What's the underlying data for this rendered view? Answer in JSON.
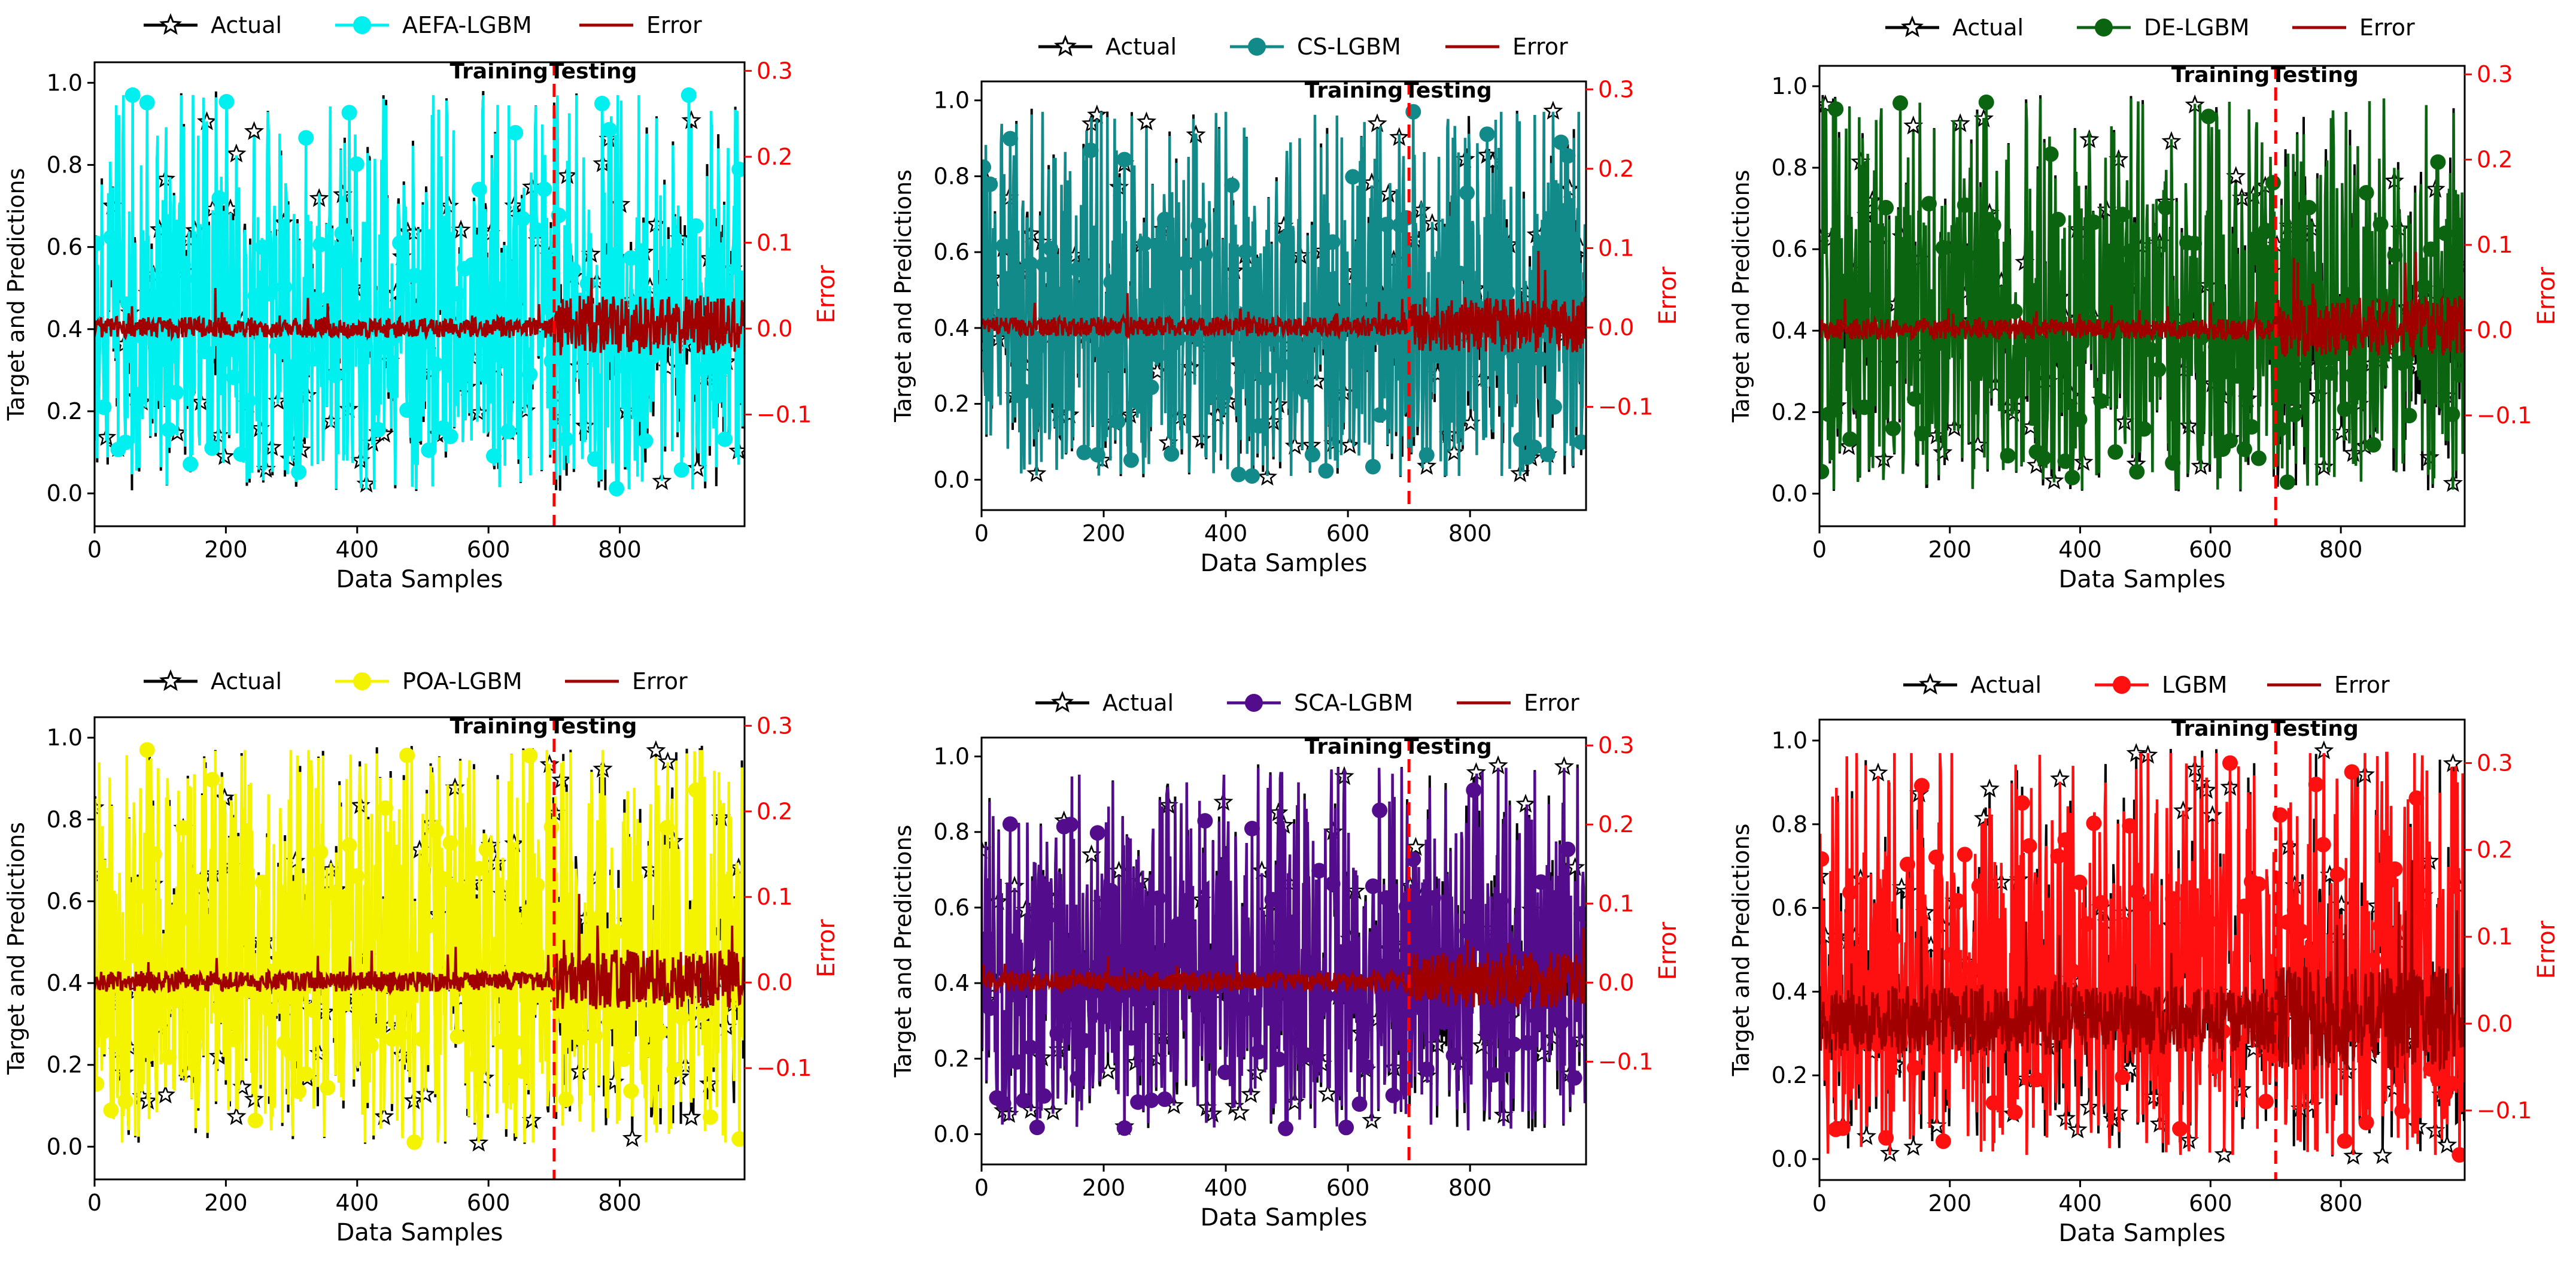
{
  "figure": {
    "xlabel": "Data Samples",
    "ylabel_left": "Target and Predictions",
    "ylabel_right": "Error",
    "annotation_train": "Training",
    "annotation_test": "Testing",
    "legend_actual": "Actual",
    "legend_error": "Error",
    "colors": {
      "actual": "#000000",
      "error": "#a00000",
      "split": "#ff0000",
      "error_axis": "#ff0000"
    }
  },
  "chart_data": [
    {
      "type": "line",
      "title": "",
      "model": "AEFA-LGBM",
      "pred_color": "#00f0f0",
      "n_samples": 990,
      "split_at": 700,
      "xlim": [
        0,
        990
      ],
      "ylim": [
        -0.08,
        1.05
      ],
      "y2lim": [
        -0.23,
        0.31
      ],
      "xticks": [
        0,
        200,
        400,
        600,
        800
      ],
      "yticks": [
        0.0,
        0.2,
        0.4,
        0.6,
        0.8,
        1.0
      ],
      "y2ticks": [
        -0.1,
        0.0,
        0.1,
        0.2,
        0.3
      ],
      "series": [
        {
          "name": "Actual"
        },
        {
          "name": "AEFA-LGBM"
        },
        {
          "name": "Error"
        }
      ],
      "error_amplitude_train": 0.012,
      "error_amplitude_test": 0.035,
      "error_baseline": 0.0
    },
    {
      "type": "line",
      "title": "",
      "model": "CS-LGBM",
      "pred_color": "#128a8a",
      "n_samples": 990,
      "split_at": 700,
      "xlim": [
        0,
        990
      ],
      "ylim": [
        -0.08,
        1.05
      ],
      "y2lim": [
        -0.23,
        0.31
      ],
      "xticks": [
        0,
        200,
        400,
        600,
        800
      ],
      "yticks": [
        0.0,
        0.2,
        0.4,
        0.6,
        0.8,
        1.0
      ],
      "y2ticks": [
        -0.1,
        0.0,
        0.1,
        0.2,
        0.3
      ],
      "series": [
        {
          "name": "Actual"
        },
        {
          "name": "CS-LGBM"
        },
        {
          "name": "Error"
        }
      ],
      "error_amplitude_train": 0.012,
      "error_amplitude_test": 0.035,
      "error_baseline": 0.0
    },
    {
      "type": "line",
      "title": "",
      "model": "DE-LGBM",
      "pred_color": "#0a6410",
      "n_samples": 990,
      "split_at": 700,
      "xlim": [
        0,
        990
      ],
      "ylim": [
        -0.08,
        1.05
      ],
      "y2lim": [
        -0.23,
        0.31
      ],
      "xticks": [
        0,
        200,
        400,
        600,
        800
      ],
      "yticks": [
        0.0,
        0.2,
        0.4,
        0.6,
        0.8,
        1.0
      ],
      "y2ticks": [
        -0.1,
        0.0,
        0.1,
        0.2,
        0.3
      ],
      "series": [
        {
          "name": "Actual"
        },
        {
          "name": "DE-LGBM"
        },
        {
          "name": "Error"
        }
      ],
      "error_amplitude_train": 0.012,
      "error_amplitude_test": 0.035,
      "error_baseline": 0.0
    },
    {
      "type": "line",
      "title": "",
      "model": "POA-LGBM",
      "pred_color": "#f4f400",
      "n_samples": 990,
      "split_at": 700,
      "xlim": [
        0,
        990
      ],
      "ylim": [
        -0.08,
        1.05
      ],
      "y2lim": [
        -0.23,
        0.31
      ],
      "xticks": [
        0,
        200,
        400,
        600,
        800
      ],
      "yticks": [
        0.0,
        0.2,
        0.4,
        0.6,
        0.8,
        1.0
      ],
      "y2ticks": [
        -0.1,
        0.0,
        0.1,
        0.2,
        0.3
      ],
      "series": [
        {
          "name": "Actual"
        },
        {
          "name": "POA-LGBM"
        },
        {
          "name": "Error"
        }
      ],
      "error_amplitude_train": 0.012,
      "error_amplitude_test": 0.035,
      "error_baseline": 0.0
    },
    {
      "type": "line",
      "title": "",
      "model": "SCA-LGBM",
      "pred_color": "#520c8c",
      "n_samples": 990,
      "split_at": 700,
      "xlim": [
        0,
        990
      ],
      "ylim": [
        -0.08,
        1.05
      ],
      "y2lim": [
        -0.23,
        0.31
      ],
      "xticks": [
        0,
        200,
        400,
        600,
        800
      ],
      "yticks": [
        0.0,
        0.2,
        0.4,
        0.6,
        0.8,
        1.0
      ],
      "y2ticks": [
        -0.1,
        0.0,
        0.1,
        0.2,
        0.3
      ],
      "series": [
        {
          "name": "Actual"
        },
        {
          "name": "SCA-LGBM"
        },
        {
          "name": "Error"
        }
      ],
      "error_amplitude_train": 0.012,
      "error_amplitude_test": 0.035,
      "error_baseline": 0.0
    },
    {
      "type": "line",
      "title": "",
      "model": "LGBM",
      "pred_color": "#ff1010",
      "n_samples": 990,
      "split_at": 700,
      "xlim": [
        0,
        990
      ],
      "ylim": [
        -0.05,
        1.05
      ],
      "y2lim": [
        -0.18,
        0.35
      ],
      "xticks": [
        0,
        200,
        400,
        600,
        800
      ],
      "yticks": [
        0.0,
        0.2,
        0.4,
        0.6,
        0.8,
        1.0
      ],
      "y2ticks": [
        -0.1,
        0.0,
        0.1,
        0.2,
        0.3
      ],
      "series": [
        {
          "name": "Actual"
        },
        {
          "name": "LGBM"
        },
        {
          "name": "Error"
        }
      ],
      "error_amplitude_train": 0.04,
      "error_amplitude_test": 0.06,
      "error_baseline": 0.0
    }
  ]
}
